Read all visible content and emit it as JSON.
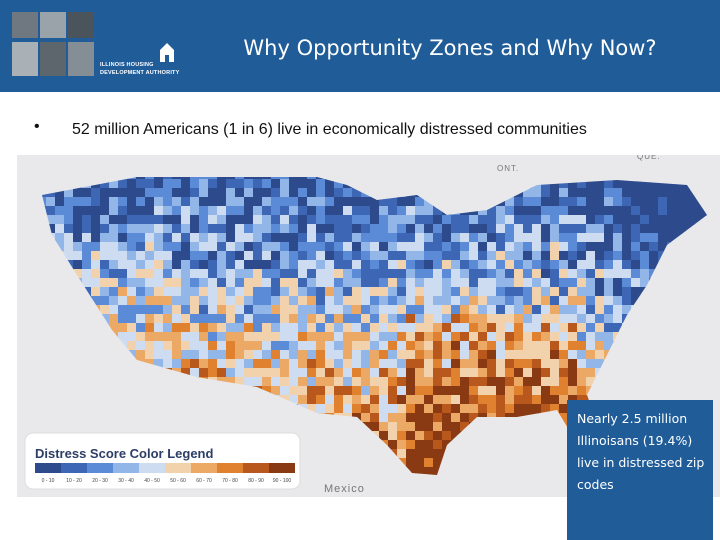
{
  "header": {
    "title": "Why Opportunity Zones and Why Now?",
    "logo_text": [
      "ILLINOIS HOUSING",
      "DEVELOPMENT AUTHORITY"
    ]
  },
  "bullets": [
    "52 million Americans (1 in 6) live in economically distressed communities"
  ],
  "map": {
    "labels": [
      "ONT.",
      "QUE.",
      "Mexico"
    ]
  },
  "legend": {
    "title": "Distress Score Color Legend",
    "items": [
      {
        "label": "0 - 10",
        "color": "#2c4a8c"
      },
      {
        "label": "10 - 20",
        "color": "#3d66b4"
      },
      {
        "label": "20 - 30",
        "color": "#5b8bd6"
      },
      {
        "label": "30 - 40",
        "color": "#93b6e8"
      },
      {
        "label": "40 - 50",
        "color": "#cddcf0"
      },
      {
        "label": "50 - 60",
        "color": "#f2d2ad"
      },
      {
        "label": "60 - 70",
        "color": "#eca865"
      },
      {
        "label": "70 - 80",
        "color": "#df812e"
      },
      {
        "label": "80 - 90",
        "color": "#b8581c"
      },
      {
        "label": "90 - 100",
        "color": "#8a3a12"
      }
    ]
  },
  "callout": {
    "text": "Nearly 2.5 million Illinoisans (19.4%) live in distressed zip codes"
  }
}
